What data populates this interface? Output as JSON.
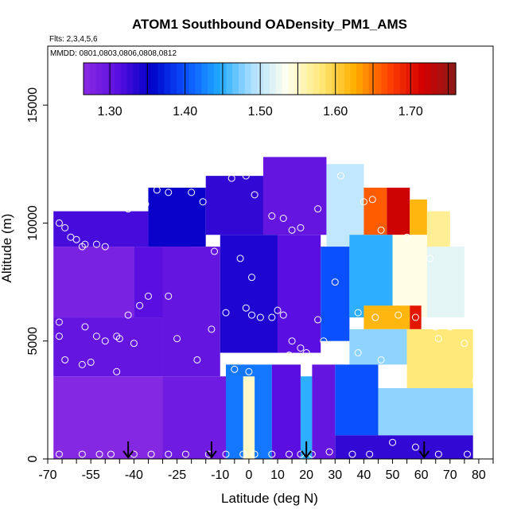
{
  "chart_data": {
    "type": "heatmap",
    "title": "ATOM1 Southbound OADensity_PM1_AMS",
    "subtitle_flights": "Flts: 2,3,4,5,6",
    "subtitle_dates": "MMDD: 0801,0803,0806,0808,0812",
    "xlabel": "Latitude (deg N)",
    "ylabel": "Altitude (m)",
    "xlim": [
      -70,
      85
    ],
    "ylim": [
      0,
      17500
    ],
    "xticks": [
      -70,
      -55,
      -40,
      -25,
      -10,
      0,
      10,
      20,
      30,
      40,
      50,
      60,
      70,
      80
    ],
    "xtick_labels": [
      "-70",
      "-55",
      "-40",
      "-25",
      "-10",
      "0",
      "10",
      "20",
      "30",
      "40",
      "50",
      "60",
      "70",
      "80"
    ],
    "yticks": [
      0,
      5000,
      10000,
      15000
    ],
    "ytick_labels": [
      "0",
      "5000",
      "10000",
      "15000"
    ],
    "colorbar": {
      "range": [
        1.265,
        1.76
      ],
      "ticks": [
        1.3,
        1.4,
        1.5,
        1.6,
        1.7
      ],
      "tick_labels": [
        "1.30",
        "1.40",
        "1.50",
        "1.60",
        "1.70"
      ]
    },
    "colors": {
      "stops": [
        "#8a2be2",
        "#5a0fe0",
        "#0000c8",
        "#0a50ff",
        "#1ea8ff",
        "#aee0ff",
        "#fffff0",
        "#ffe97a",
        "#ffb000",
        "#ff4400",
        "#d50000",
        "#8b1a1a"
      ]
    },
    "arrows_lat": [
      -42,
      -13,
      20,
      61
    ],
    "regions": [
      {
        "lat0": -68,
        "lat1": -30,
        "alt0": 0,
        "alt1": 3500,
        "value": 1.27
      },
      {
        "lat0": -68,
        "lat1": -30,
        "alt0": 3500,
        "alt1": 6000,
        "value": 1.3
      },
      {
        "lat0": -68,
        "lat1": -40,
        "alt0": 6000,
        "alt1": 9000,
        "value": 1.28
      },
      {
        "lat0": -40,
        "lat1": -20,
        "alt0": 6000,
        "alt1": 9000,
        "value": 1.31
      },
      {
        "lat0": -68,
        "lat1": -35,
        "alt0": 9000,
        "alt1": 10500,
        "value": 1.32
      },
      {
        "lat0": -35,
        "lat1": -15,
        "alt0": 9000,
        "alt1": 11500,
        "value": 1.35
      },
      {
        "lat0": -15,
        "lat1": 5,
        "alt0": 9500,
        "alt1": 12000,
        "value": 1.33
      },
      {
        "lat0": 5,
        "lat1": 27,
        "alt0": 9500,
        "alt1": 12800,
        "value": 1.3
      },
      {
        "lat0": 27,
        "lat1": 40,
        "alt0": 9000,
        "alt1": 12500,
        "value": 1.5
      },
      {
        "lat0": 40,
        "lat1": 48,
        "alt0": 9500,
        "alt1": 11500,
        "value": 1.66
      },
      {
        "lat0": 48,
        "lat1": 56,
        "alt0": 9500,
        "alt1": 11500,
        "value": 1.72
      },
      {
        "lat0": 56,
        "lat1": 62,
        "alt0": 9500,
        "alt1": 11000,
        "value": 1.62
      },
      {
        "lat0": 62,
        "lat1": 70,
        "alt0": 9000,
        "alt1": 10500,
        "value": 1.57
      },
      {
        "lat0": -30,
        "lat1": -10,
        "alt0": 3500,
        "alt1": 9000,
        "value": 1.3
      },
      {
        "lat0": -10,
        "lat1": 10,
        "alt0": 4500,
        "alt1": 9500,
        "value": 1.34
      },
      {
        "lat0": 10,
        "lat1": 25,
        "alt0": 4500,
        "alt1": 9500,
        "value": 1.31
      },
      {
        "lat0": 25,
        "lat1": 35,
        "alt0": 5000,
        "alt1": 9000,
        "value": 1.4
      },
      {
        "lat0": 35,
        "lat1": 50,
        "alt0": 6000,
        "alt1": 9500,
        "value": 1.45
      },
      {
        "lat0": 50,
        "lat1": 62,
        "alt0": 6000,
        "alt1": 9500,
        "value": 1.54
      },
      {
        "lat0": 62,
        "lat1": 75,
        "alt0": 6000,
        "alt1": 9000,
        "value": 1.52
      },
      {
        "lat0": 40,
        "lat1": 56,
        "alt0": 5500,
        "alt1": 6500,
        "value": 1.62
      },
      {
        "lat0": 56,
        "lat1": 60,
        "alt0": 5500,
        "alt1": 6500,
        "value": 1.7
      },
      {
        "lat0": 35,
        "lat1": 55,
        "alt0": 4000,
        "alt1": 5500,
        "value": 1.48
      },
      {
        "lat0": 55,
        "lat1": 78,
        "alt0": 3000,
        "alt1": 5500,
        "value": 1.58
      },
      {
        "lat0": 30,
        "lat1": 45,
        "alt0": 1000,
        "alt1": 4000,
        "value": 1.4
      },
      {
        "lat0": 45,
        "lat1": 78,
        "alt0": 1000,
        "alt1": 3000,
        "value": 1.48
      },
      {
        "lat0": 30,
        "lat1": 78,
        "alt0": 0,
        "alt1": 1000,
        "value": 1.33
      },
      {
        "lat0": -30,
        "lat1": -8,
        "alt0": 0,
        "alt1": 3500,
        "value": 1.29
      },
      {
        "lat0": -8,
        "lat1": 8,
        "alt0": 0,
        "alt1": 4000,
        "value": 1.42
      },
      {
        "lat0": -2,
        "lat1": 2,
        "alt0": 0,
        "alt1": 3500,
        "value": 1.55
      },
      {
        "lat0": 8,
        "lat1": 18,
        "alt0": 0,
        "alt1": 4000,
        "value": 1.31
      },
      {
        "lat0": 18,
        "lat1": 22,
        "alt0": 0,
        "alt1": 3500,
        "value": 1.45
      },
      {
        "lat0": 22,
        "lat1": 30,
        "alt0": 0,
        "alt1": 4000,
        "value": 1.3
      }
    ],
    "points": [
      [
        -66,
        10000
      ],
      [
        -64,
        9800
      ],
      [
        -62,
        9400
      ],
      [
        -60,
        9300
      ],
      [
        -57,
        9100
      ],
      [
        -58,
        9000
      ],
      [
        -53,
        9100
      ],
      [
        -50,
        9000
      ],
      [
        -66,
        5800
      ],
      [
        -66,
        5200
      ],
      [
        -57,
        5600
      ],
      [
        -53,
        5200
      ],
      [
        -50,
        5000
      ],
      [
        -46,
        5200
      ],
      [
        -45,
        5100
      ],
      [
        -40,
        4900
      ],
      [
        -64,
        4200
      ],
      [
        -58,
        4000
      ],
      [
        -55,
        4100
      ],
      [
        -46,
        3700
      ],
      [
        -42,
        6100
      ],
      [
        -38,
        6500
      ],
      [
        -35,
        6900
      ],
      [
        -28,
        6900
      ],
      [
        -25,
        5100
      ],
      [
        -18,
        4200
      ],
      [
        -13,
        5500
      ],
      [
        -8,
        6200
      ],
      [
        -5,
        3800
      ],
      [
        -1,
        6400
      ],
      [
        1,
        6100
      ],
      [
        1,
        7700
      ],
      [
        -3,
        8500
      ],
      [
        -12,
        8800
      ],
      [
        -16,
        10900
      ],
      [
        -20,
        11300
      ],
      [
        -28,
        11300
      ],
      [
        -32,
        11400
      ],
      [
        -36,
        10800
      ],
      [
        -42,
        10600
      ],
      [
        -46,
        11600
      ],
      [
        -6,
        11900
      ],
      [
        -1,
        12000
      ],
      [
        2,
        11200
      ],
      [
        8,
        10300
      ],
      [
        12,
        10200
      ],
      [
        15,
        9700
      ],
      [
        18,
        9800
      ],
      [
        24,
        10600
      ],
      [
        28,
        13100
      ],
      [
        32,
        12000
      ],
      [
        40,
        10900
      ],
      [
        43,
        11000
      ],
      [
        46,
        9700
      ],
      [
        55,
        9400
      ],
      [
        63,
        8500
      ],
      [
        78,
        9800
      ],
      [
        4,
        6000
      ],
      [
        8,
        6000
      ],
      [
        12,
        6100
      ],
      [
        15,
        5000
      ],
      [
        18,
        4700
      ],
      [
        20,
        4500
      ],
      [
        14,
        4400
      ],
      [
        10,
        6300
      ],
      [
        24,
        5900
      ],
      [
        26,
        5000
      ],
      [
        30,
        7500
      ],
      [
        38,
        6200
      ],
      [
        44,
        6000
      ],
      [
        52,
        6100
      ],
      [
        58,
        6000
      ],
      [
        65,
        5600
      ],
      [
        66,
        5100
      ],
      [
        70,
        5600
      ],
      [
        75,
        4900
      ],
      [
        38,
        4500
      ],
      [
        46,
        4200
      ],
      [
        52,
        3800
      ],
      [
        79,
        3300
      ],
      [
        -66,
        200
      ],
      [
        -58,
        200
      ],
      [
        -52,
        200
      ],
      [
        -48,
        200
      ],
      [
        -40,
        200
      ],
      [
        -34,
        200
      ],
      [
        -28,
        200
      ],
      [
        -22,
        200
      ],
      [
        -14,
        200
      ],
      [
        -8,
        200
      ],
      [
        -2,
        200
      ],
      [
        2,
        200
      ],
      [
        8,
        200
      ],
      [
        14,
        200
      ],
      [
        18,
        200
      ],
      [
        22,
        200
      ],
      [
        28,
        300
      ],
      [
        36,
        200
      ],
      [
        42,
        200
      ],
      [
        50,
        700
      ],
      [
        58,
        500
      ],
      [
        66,
        200
      ],
      [
        76,
        200
      ],
      [
        0,
        3700
      ]
    ]
  }
}
